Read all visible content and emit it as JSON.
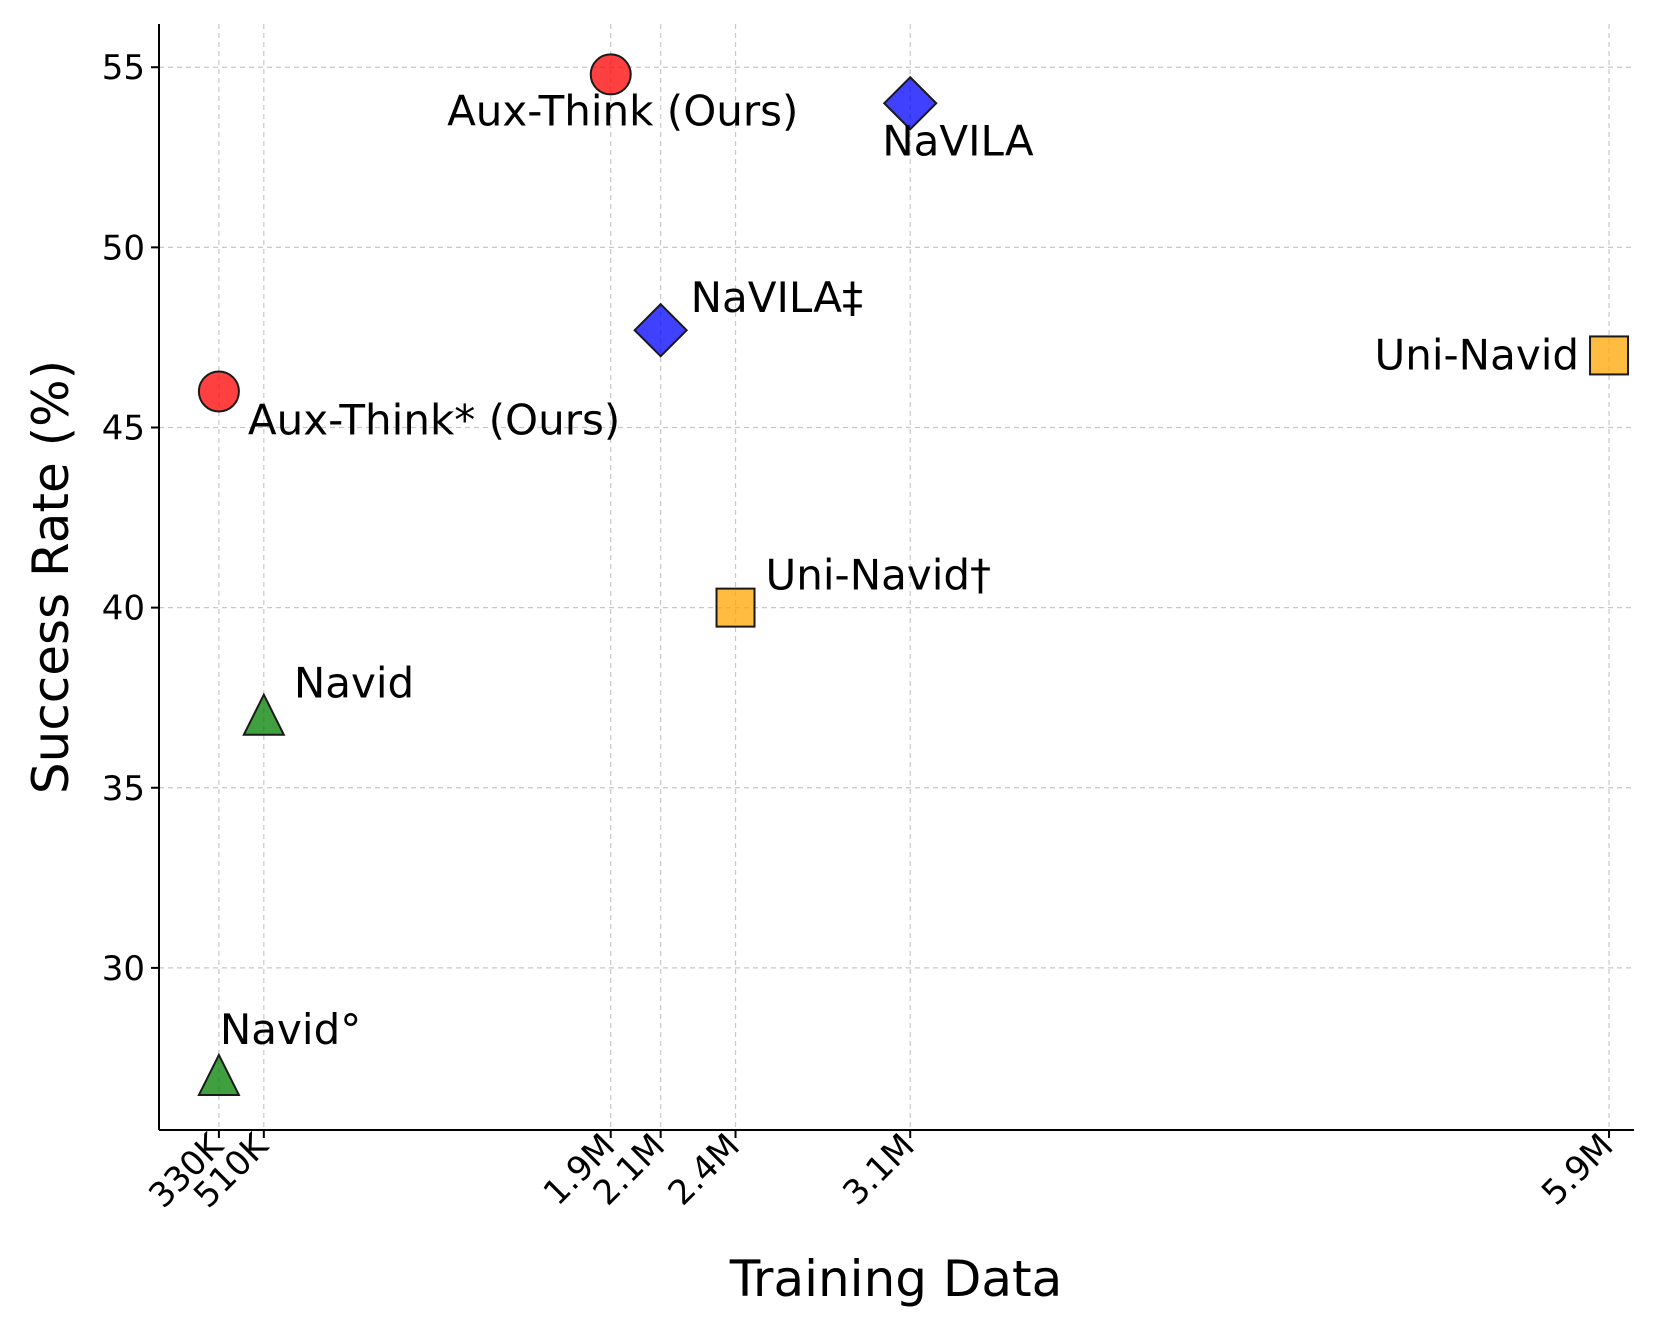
{
  "chart_data": {
    "type": "scatter",
    "xlabel": "Training Data",
    "ylabel": "Success Rate (%)",
    "grid": true,
    "xlim": [
      0.09,
      6.0
    ],
    "ylim": [
      25.5,
      56.2
    ],
    "x_unit": "millions of samples",
    "x_ticks": [
      {
        "value": 0.33,
        "label": "330K"
      },
      {
        "value": 0.51,
        "label": "510K"
      },
      {
        "value": 1.9,
        "label": "1.9M"
      },
      {
        "value": 2.1,
        "label": "2.1M"
      },
      {
        "value": 2.4,
        "label": "2.4M"
      },
      {
        "value": 3.1,
        "label": "3.1M"
      },
      {
        "value": 5.9,
        "label": "5.9M"
      }
    ],
    "y_ticks": [
      {
        "value": 30,
        "label": "30"
      },
      {
        "value": 35,
        "label": "35"
      },
      {
        "value": 40,
        "label": "40"
      },
      {
        "value": 45,
        "label": "45"
      },
      {
        "value": 50,
        "label": "50"
      },
      {
        "value": 55,
        "label": "55"
      }
    ],
    "points": [
      {
        "label": "Aux-Think (Ours)",
        "x": 1.9,
        "y": 54.8,
        "marker": "circle",
        "color": "#ff0000",
        "label_pos": "below-left"
      },
      {
        "label": "Aux-Think* (Ours)",
        "x": 0.33,
        "y": 46.0,
        "marker": "circle",
        "color": "#ff0000",
        "label_pos": "below-right"
      },
      {
        "label": "NaVILA",
        "x": 3.1,
        "y": 54.0,
        "marker": "diamond",
        "color": "#0000ff",
        "label_pos": "below-right"
      },
      {
        "label": "NaVILA‡",
        "x": 2.1,
        "y": 47.7,
        "marker": "diamond",
        "color": "#0000ff",
        "label_pos": "above-right"
      },
      {
        "label": "Uni-Navid",
        "x": 5.9,
        "y": 47.0,
        "marker": "square",
        "color": "#ffa500",
        "label_pos": "left"
      },
      {
        "label": "Uni-Navid†",
        "x": 2.4,
        "y": 40.0,
        "marker": "square",
        "color": "#ffa500",
        "label_pos": "above-right"
      },
      {
        "label": "Navid",
        "x": 0.51,
        "y": 37.0,
        "marker": "triangle",
        "color": "#008000",
        "label_pos": "above-right"
      },
      {
        "label": "Navid°",
        "x": 0.33,
        "y": 27.0,
        "marker": "triangle",
        "color": "#008000",
        "label_pos": "above"
      }
    ]
  }
}
